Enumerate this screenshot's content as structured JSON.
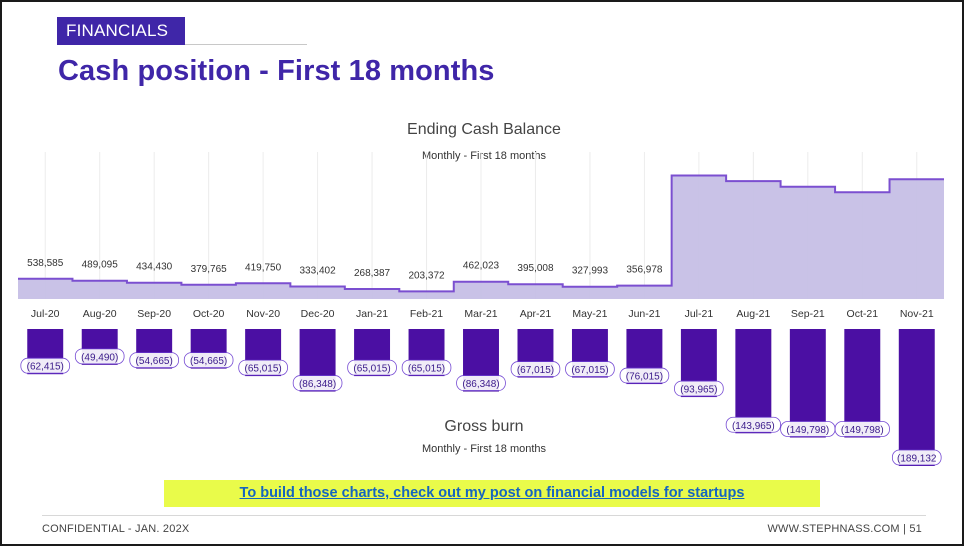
{
  "section_tag": "FINANCIALS",
  "title": "Cash position - First 18 months",
  "colors": {
    "accent": "#3f26a8",
    "area_fill": "#c6bfe6",
    "area_line": "#7b4fd0",
    "bar_fill": "#4b0fa3",
    "cta_bg": "#e9fb4a",
    "cta_link": "#1565c0"
  },
  "chart_data": [
    {
      "type": "area",
      "title": "Ending Cash Balance",
      "subtitle": "Monthly - First 18 months",
      "categories": [
        "Jul-20",
        "Aug-20",
        "Sep-20",
        "Oct-20",
        "Nov-20",
        "Dec-20",
        "Jan-21",
        "Feb-21",
        "Mar-21",
        "Apr-21",
        "May-21",
        "Jun-21",
        "Jul-21",
        "Aug-21",
        "Sep-21",
        "Oct-21",
        "Nov-21"
      ],
      "values": [
        538585,
        489095,
        434430,
        379765,
        419750,
        333402,
        268387,
        203372,
        462023,
        395008,
        327993,
        356978,
        3300000,
        3150000,
        3000000,
        2850000,
        3200000
      ],
      "data_labels": [
        "538,585",
        "489,095",
        "434,430",
        "379,765",
        "419,750",
        "333,402",
        "268,387",
        "203,372",
        "462,023",
        "395,008",
        "327,993",
        "356,978",
        "",
        "",
        "",
        "",
        ""
      ],
      "ylim": [
        0,
        3500000
      ],
      "grid": "vertical"
    },
    {
      "type": "bar",
      "title": "Gross burn",
      "subtitle": "Monthly - First 18 months",
      "categories": [
        "Jul-20",
        "Aug-20",
        "Sep-20",
        "Oct-20",
        "Nov-20",
        "Dec-20",
        "Jan-21",
        "Feb-21",
        "Mar-21",
        "Apr-21",
        "May-21",
        "Jun-21",
        "Jul-21",
        "Aug-21",
        "Sep-21",
        "Oct-21",
        "Nov-21"
      ],
      "values": [
        -62415,
        -49490,
        -54665,
        -54665,
        -65015,
        -86348,
        -65015,
        -65015,
        -86348,
        -67015,
        -67015,
        -76015,
        -93965,
        -143965,
        -149798,
        -149798,
        -189132
      ],
      "data_labels": [
        "(62,415)",
        "(49,490)",
        "(54,665)",
        "(54,665)",
        "(65,015)",
        "(86,348)",
        "(65,015)",
        "(65,015)",
        "(86,348)",
        "(67,015)",
        "(67,015)",
        "(76,015)",
        "(93,965)",
        "(143,965)",
        "(149,798)",
        "(149,798)",
        "(189,132"
      ],
      "ylim": [
        -189132,
        0
      ]
    }
  ],
  "cta": {
    "text": "To build those charts, check out my post on financial models for startups"
  },
  "footer": {
    "left": "CONFIDENTIAL - JAN. 202X",
    "right": "WWW.STEPHNASS.COM | 51"
  }
}
